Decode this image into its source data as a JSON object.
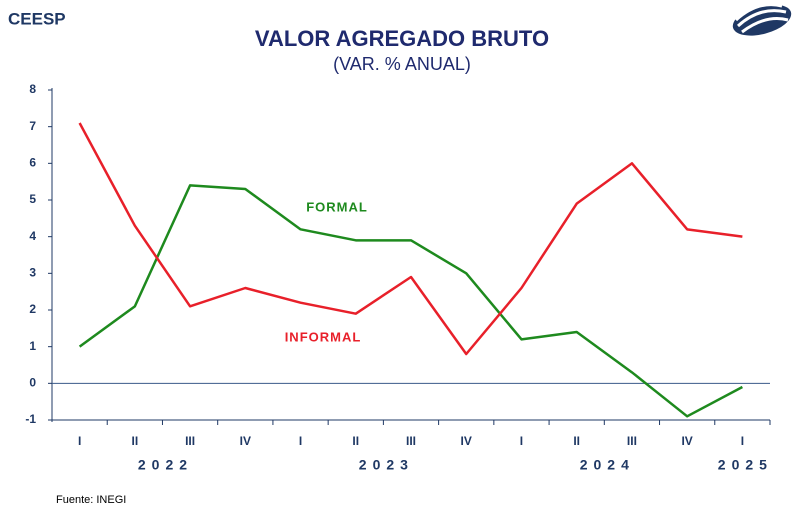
{
  "brand": "CEESP",
  "source": "Fuente: INEGI",
  "chart_data": {
    "type": "line",
    "title": "VALOR AGREGADO BRUTO",
    "subtitle": "(VAR. % ANUAL)",
    "categories": [
      "I",
      "II",
      "III",
      "IV",
      "I",
      "II",
      "III",
      "IV",
      "I",
      "II",
      "III",
      "IV",
      "I"
    ],
    "year_groups": [
      "2022",
      "2023",
      "2024",
      "2025"
    ],
    "series": [
      {
        "name": "FORMAL",
        "color": "#1e8a1e",
        "values": [
          1.0,
          2.1,
          5.4,
          5.3,
          4.2,
          3.9,
          3.9,
          3.0,
          1.2,
          1.4,
          0.3,
          -0.9,
          -0.1
        ]
      },
      {
        "name": "INFORMAL",
        "color": "#e8202a",
        "values": [
          7.1,
          4.3,
          2.1,
          2.6,
          2.2,
          1.9,
          2.9,
          0.8,
          2.6,
          4.9,
          6.0,
          4.2,
          4.0
        ]
      }
    ],
    "ylim": [
      -1,
      8
    ],
    "yticks": [
      -1,
      0,
      1,
      2,
      3,
      4,
      5,
      6,
      7,
      8
    ]
  }
}
